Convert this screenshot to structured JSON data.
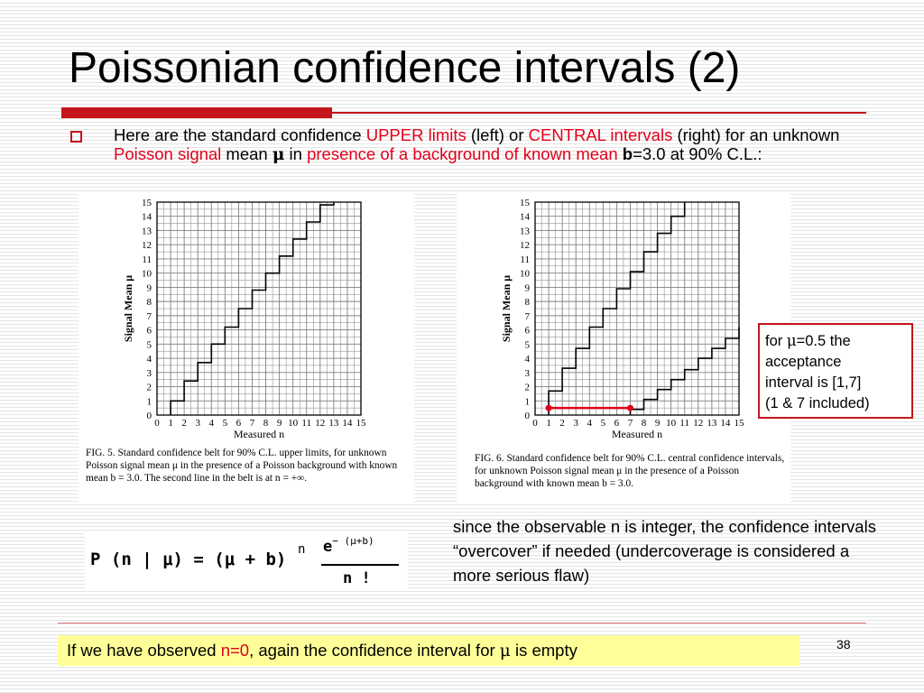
{
  "slide": {
    "title": "Poissonian confidence intervals (2)",
    "page_number": "38",
    "accent_color": "#c4161c",
    "highlight_color": "#e2001a"
  },
  "bullet": {
    "t1": "Here are the standard confidence ",
    "t2": "UPPER limits",
    "t3": " (left) or ",
    "t4": "CENTRAL intervals",
    "t5": " (right) for an unknown ",
    "t6": "Poisson signal",
    "t7": " mean ",
    "t8": "μ",
    "t9": " in ",
    "t10": "presence of a background of known mean",
    "t11": " ",
    "t12": "b",
    "t13": "=3.0 at 90% C.L.:"
  },
  "fig_left": {
    "caption": "FIG. 5. Standard confidence belt for 90% C.L. upper limits, for unknown Poisson signal mean μ in the presence of a Poisson background with known mean b = 3.0. The second line in the belt is at n = +∞."
  },
  "fig_right": {
    "caption": "FIG. 6. Standard confidence belt for 90% C.L. central confidence intervals, for unknown Poisson signal mean μ in the presence of a Poisson background with known mean b = 3.0."
  },
  "formula": {
    "lhs": "P (n | μ) = (μ + b)",
    "n_exp": "n",
    "e": "e",
    "e_exp": "− (μ+b)",
    "den": "n !"
  },
  "note": {
    "line1_a": "for ",
    "line1_mu": "μ",
    "line1_b": "=0.5 the",
    "line2": "acceptance",
    "line3": "interval is [1,7]",
    "line4": "(1 & 7 included)"
  },
  "right_text": "since the observable n is integer, the confidence intervals “overcover” if needed (undercoverage is considered a more serious flaw)",
  "bottom": {
    "t1": "If we have observed ",
    "t2": "n=0",
    "t3": ", again the confidence interval for ",
    "t4": "μ",
    "t5": " is empty"
  },
  "chart_data": [
    {
      "type": "line",
      "title": "",
      "xlabel": "Measured n",
      "ylabel": "Signal Mean μ",
      "xlim": [
        0,
        15
      ],
      "ylim": [
        0,
        15
      ],
      "x_ticks": [
        "0",
        "1",
        "2",
        "3",
        "4",
        "5",
        "6",
        "7",
        "8",
        "9",
        "10",
        "11",
        "12",
        "13",
        "14",
        "15"
      ],
      "y_ticks": [
        "0",
        "1",
        "2",
        "3",
        "4",
        "5",
        "6",
        "7",
        "8",
        "9",
        "10",
        "11",
        "12",
        "13",
        "14",
        "15"
      ],
      "grid": true,
      "series": [
        {
          "steps": [
            [
              1,
              0
            ],
            [
              1,
              1.0
            ],
            [
              2,
              1.0
            ],
            [
              2,
              2.4
            ],
            [
              3,
              2.4
            ],
            [
              3,
              3.7
            ],
            [
              4,
              3.7
            ],
            [
              4,
              5.0
            ],
            [
              5,
              5.0
            ],
            [
              5,
              6.2
            ],
            [
              6,
              6.2
            ],
            [
              6,
              7.5
            ],
            [
              7,
              7.5
            ],
            [
              7,
              8.8
            ],
            [
              8,
              8.8
            ],
            [
              8,
              10.0
            ],
            [
              9,
              10.0
            ],
            [
              9,
              11.2
            ],
            [
              10,
              11.2
            ],
            [
              10,
              12.4
            ],
            [
              11,
              12.4
            ],
            [
              11,
              13.6
            ],
            [
              12,
              13.6
            ],
            [
              12,
              14.8
            ],
            [
              13,
              14.8
            ],
            [
              13,
              15
            ]
          ]
        }
      ]
    },
    {
      "type": "line",
      "title": "",
      "xlabel": "Measured n",
      "ylabel": "Signal Mean μ",
      "xlim": [
        0,
        15
      ],
      "ylim": [
        0,
        15
      ],
      "x_ticks": [
        "0",
        "1",
        "2",
        "3",
        "4",
        "5",
        "6",
        "7",
        "8",
        "9",
        "10",
        "11",
        "12",
        "13",
        "14",
        "15"
      ],
      "y_ticks": [
        "0",
        "1",
        "2",
        "3",
        "4",
        "5",
        "6",
        "7",
        "8",
        "9",
        "10",
        "11",
        "12",
        "13",
        "14",
        "15"
      ],
      "grid": true,
      "series": [
        {
          "steps": [
            [
              1,
              0
            ],
            [
              1,
              1.7
            ],
            [
              2,
              1.7
            ],
            [
              2,
              3.3
            ],
            [
              3,
              3.3
            ],
            [
              3,
              4.7
            ],
            [
              4,
              4.7
            ],
            [
              4,
              6.2
            ],
            [
              5,
              6.2
            ],
            [
              5,
              7.5
            ],
            [
              6,
              7.5
            ],
            [
              6,
              8.9
            ],
            [
              7,
              8.9
            ],
            [
              7,
              10.1
            ],
            [
              8,
              10.1
            ],
            [
              8,
              11.5
            ],
            [
              9,
              11.5
            ],
            [
              9,
              12.8
            ],
            [
              10,
              12.8
            ],
            [
              10,
              14.0
            ],
            [
              11,
              14.0
            ],
            [
              11,
              15
            ]
          ]
        },
        {
          "steps": [
            [
              7,
              0
            ],
            [
              7,
              0.4
            ],
            [
              8,
              0.4
            ],
            [
              8,
              1.1
            ],
            [
              9,
              1.1
            ],
            [
              9,
              1.8
            ],
            [
              10,
              1.8
            ],
            [
              10,
              2.5
            ],
            [
              11,
              2.5
            ],
            [
              11,
              3.2
            ],
            [
              12,
              3.2
            ],
            [
              12,
              4.0
            ],
            [
              13,
              4.0
            ],
            [
              13,
              4.7
            ],
            [
              14,
              4.7
            ],
            [
              14,
              5.4
            ],
            [
              15,
              5.4
            ],
            [
              15,
              6.2
            ]
          ]
        }
      ],
      "highlight_interval": {
        "mu": 0.5,
        "n_from": 1,
        "n_to": 7,
        "color": "#e2001a"
      }
    }
  ]
}
